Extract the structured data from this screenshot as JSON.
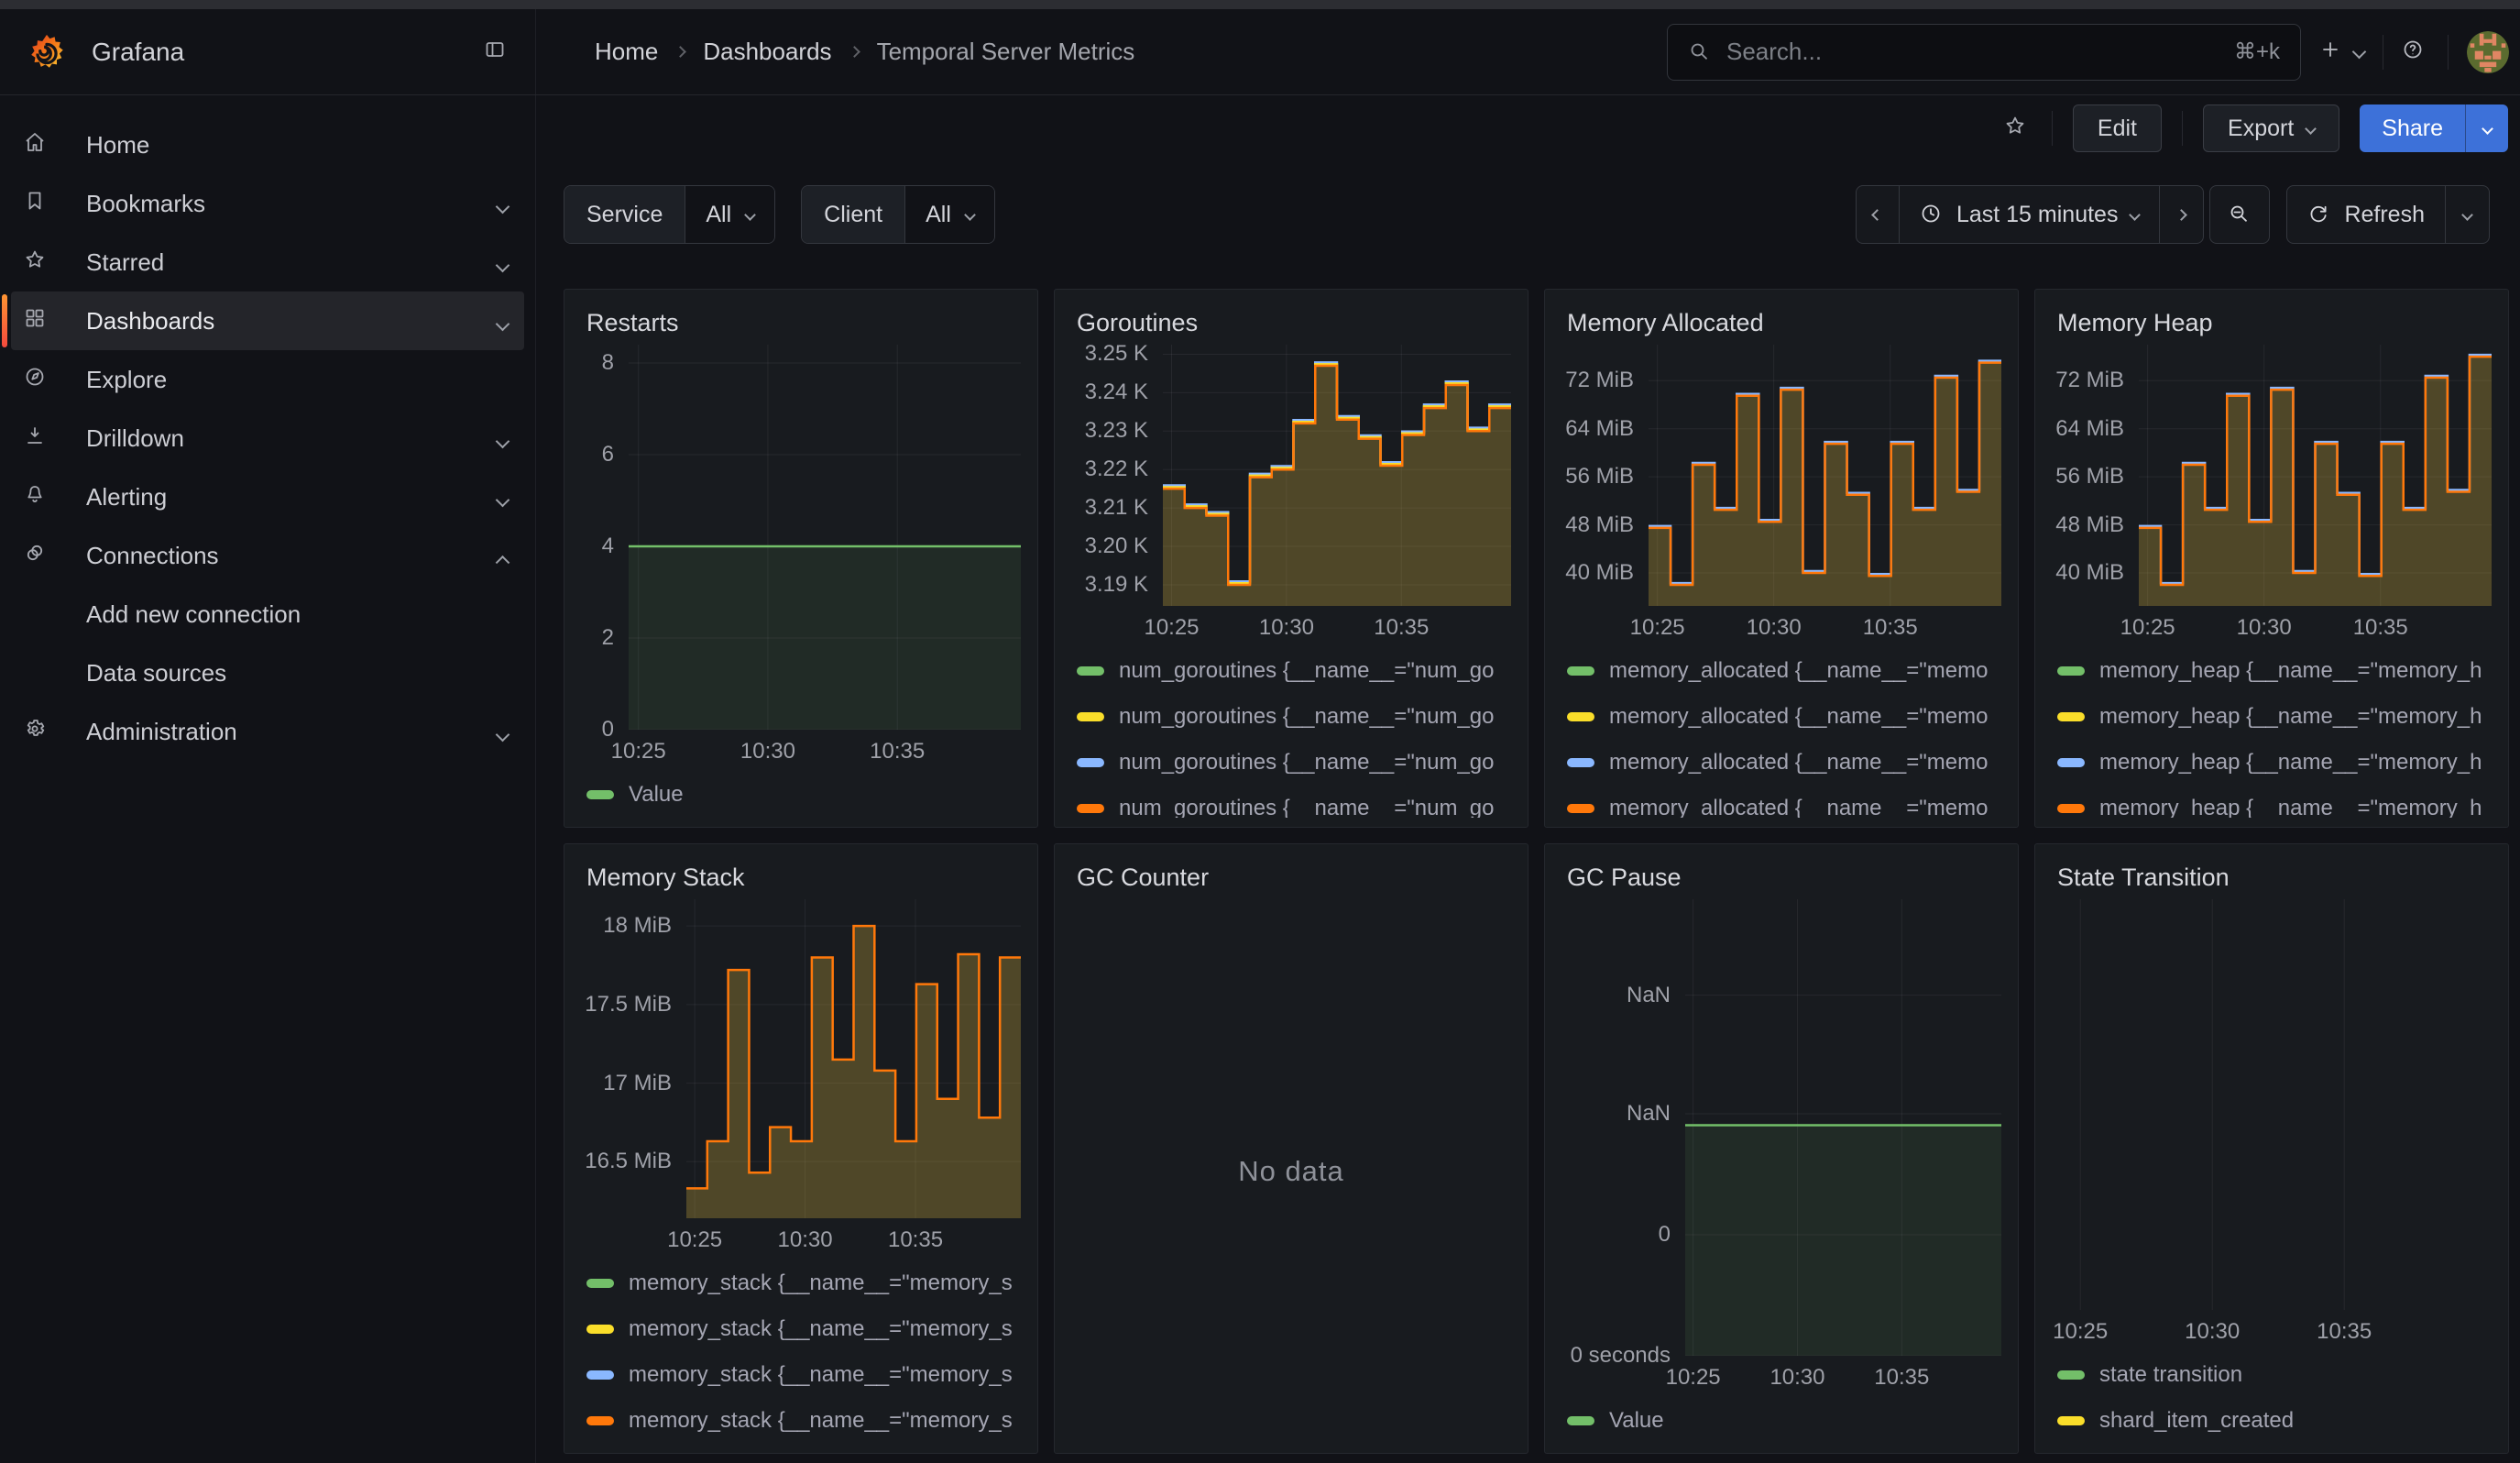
{
  "chrome": {
    "brand": "Grafana",
    "breadcrumb": [
      "Home",
      "Dashboards",
      "Temporal Server Metrics"
    ],
    "search": {
      "placeholder": "Search...",
      "shortcut": "⌘+k"
    },
    "actions": {
      "edit": "Edit",
      "export": "Export",
      "share": "Share"
    }
  },
  "sidebar": {
    "items": [
      {
        "icon": "home",
        "label": "Home"
      },
      {
        "icon": "bookmark",
        "label": "Bookmarks",
        "chevron": "down"
      },
      {
        "icon": "star",
        "label": "Starred",
        "chevron": "down"
      },
      {
        "icon": "grid",
        "label": "Dashboards",
        "chevron": "down",
        "active": true
      },
      {
        "icon": "compass",
        "label": "Explore"
      },
      {
        "icon": "drilldown",
        "label": "Drilldown",
        "chevron": "down"
      },
      {
        "icon": "bell",
        "label": "Alerting",
        "chevron": "down"
      },
      {
        "icon": "plug",
        "label": "Connections",
        "chevron": "up"
      },
      {
        "label": "Add new connection",
        "indent": true
      },
      {
        "label": "Data sources",
        "indent": true
      },
      {
        "icon": "gear",
        "label": "Administration",
        "chevron": "down"
      }
    ]
  },
  "filters": [
    {
      "label": "Service",
      "value": "All"
    },
    {
      "label": "Client",
      "value": "All"
    }
  ],
  "timebar": {
    "range": "Last 15 minutes",
    "refresh": "Refresh"
  },
  "colors": {
    "green": "#73BF69",
    "yellow": "#FADE2A",
    "blue": "#8AB8FF",
    "orange": "#FF780A",
    "share_blue": "#3D71D9",
    "accent_orange": "#FF8833"
  },
  "panels": [
    {
      "title": "Restarts",
      "type": "timeseries",
      "gutter": 52,
      "ylim": [
        0,
        8.4
      ],
      "y_ticks": [
        {
          "v": 8,
          "label": "8"
        },
        {
          "v": 6,
          "label": "6"
        },
        {
          "v": 4,
          "label": "4"
        },
        {
          "v": 2,
          "label": "2"
        },
        {
          "v": 0,
          "label": "0"
        }
      ],
      "x_ticks": [
        {
          "f": 0.025,
          "label": "10:25"
        },
        {
          "f": 0.355,
          "label": "10:30"
        },
        {
          "f": 0.685,
          "label": "10:35"
        }
      ],
      "values": [
        4,
        4
      ],
      "line_color": "#73BF69",
      "fill_color": "rgba(115,191,105,0.10)",
      "legend": [
        {
          "color": "#73BF69",
          "label": "Value"
        }
      ]
    },
    {
      "title": "Goroutines",
      "type": "timeseries",
      "gutter": 100,
      "ylim": [
        3.1845,
        3.2525
      ],
      "y_ticks": [
        {
          "v": 3.25,
          "label": "3.25 K"
        },
        {
          "v": 3.24,
          "label": "3.24 K"
        },
        {
          "v": 3.23,
          "label": "3.23 K"
        },
        {
          "v": 3.22,
          "label": "3.22 K"
        },
        {
          "v": 3.21,
          "label": "3.21 K"
        },
        {
          "v": 3.2,
          "label": "3.20 K"
        },
        {
          "v": 3.19,
          "label": "3.19 K"
        }
      ],
      "x_ticks": [
        {
          "f": 0.025,
          "label": "10:25"
        },
        {
          "f": 0.355,
          "label": "10:30"
        },
        {
          "f": 0.685,
          "label": "10:35"
        }
      ],
      "values": [
        3.215,
        3.21,
        3.208,
        3.19,
        3.218,
        3.22,
        3.232,
        3.247,
        3.233,
        3.228,
        3.221,
        3.229,
        3.236,
        3.242,
        3.23,
        3.236
      ],
      "line_color": "#FF780A",
      "fill_color": "rgba(208,176,64,0.30)",
      "edges": [
        {
          "color": "#8AB8FF",
          "dy": -13
        },
        {
          "color": "#FADE2A",
          "dy": -6
        }
      ],
      "legend": [
        {
          "color": "#73BF69",
          "label": "num_goroutines {__name__=\"num_go"
        },
        {
          "color": "#FADE2A",
          "label": "num_goroutines {__name__=\"num_go"
        },
        {
          "color": "#8AB8FF",
          "label": "num_goroutines {__name__=\"num_go"
        },
        {
          "color": "#FF780A",
          "label": "num_goroutines {__name__=\"num_go"
        }
      ]
    },
    {
      "title": "Memory Allocated",
      "type": "timeseries",
      "gutter": 95,
      "ylim": [
        34.5,
        78
      ],
      "y_ticks": [
        {
          "v": 72,
          "label": "72 MiB"
        },
        {
          "v": 64,
          "label": "64 MiB"
        },
        {
          "v": 56,
          "label": "56 MiB"
        },
        {
          "v": 48,
          "label": "48 MiB"
        },
        {
          "v": 40,
          "label": "40 MiB"
        }
      ],
      "x_ticks": [
        {
          "f": 0.025,
          "label": "10:25"
        },
        {
          "f": 0.355,
          "label": "10:30"
        },
        {
          "f": 0.685,
          "label": "10:35"
        }
      ],
      "values": [
        47.5,
        38,
        58,
        50.5,
        69.5,
        48.5,
        70.5,
        40,
        61.5,
        53,
        39.5,
        61.5,
        50.5,
        72.5,
        53.5,
        75
      ],
      "line_color": "#FF780A",
      "fill_color": "rgba(208,176,64,0.30)",
      "edges": [
        {
          "color": "#8AB8FF",
          "dy": -7
        }
      ],
      "legend": [
        {
          "color": "#73BF69",
          "label": "memory_allocated {__name__=\"memo"
        },
        {
          "color": "#FADE2A",
          "label": "memory_allocated {__name__=\"memo"
        },
        {
          "color": "#8AB8FF",
          "label": "memory_allocated {__name__=\"memo"
        },
        {
          "color": "#FF780A",
          "label": "memory_allocated {__name__=\"memo"
        }
      ]
    },
    {
      "title": "Memory Heap",
      "type": "timeseries",
      "gutter": 95,
      "ylim": [
        34.5,
        78
      ],
      "y_ticks": [
        {
          "v": 72,
          "label": "72 MiB"
        },
        {
          "v": 64,
          "label": "64 MiB"
        },
        {
          "v": 56,
          "label": "56 MiB"
        },
        {
          "v": 48,
          "label": "48 MiB"
        },
        {
          "v": 40,
          "label": "40 MiB"
        }
      ],
      "x_ticks": [
        {
          "f": 0.025,
          "label": "10:25"
        },
        {
          "f": 0.355,
          "label": "10:30"
        },
        {
          "f": 0.685,
          "label": "10:35"
        }
      ],
      "values": [
        47.5,
        38,
        58,
        50.5,
        69.5,
        48.5,
        70.5,
        40,
        61.5,
        53,
        39.5,
        61.5,
        50.5,
        72.5,
        53.5,
        76
      ],
      "line_color": "#FF780A",
      "fill_color": "rgba(208,176,64,0.30)",
      "edges": [
        {
          "color": "#8AB8FF",
          "dy": -7
        }
      ],
      "legend": [
        {
          "color": "#73BF69",
          "label": "memory_heap {__name__=\"memory_h"
        },
        {
          "color": "#FADE2A",
          "label": "memory_heap {__name__=\"memory_h"
        },
        {
          "color": "#8AB8FF",
          "label": "memory_heap {__name__=\"memory_h"
        },
        {
          "color": "#FF780A",
          "label": "memory_heap {__name__=\"memory_h"
        }
      ]
    },
    {
      "title": "Memory Stack",
      "type": "timeseries",
      "gutter": 115,
      "ylim": [
        16.14,
        18.17
      ],
      "y_ticks": [
        {
          "v": 18,
          "label": "18 MiB"
        },
        {
          "v": 17.5,
          "label": "17.5 MiB"
        },
        {
          "v": 17,
          "label": "17 MiB"
        },
        {
          "v": 16.5,
          "label": "16.5 MiB"
        }
      ],
      "x_ticks": [
        {
          "f": 0.025,
          "label": "10:25"
        },
        {
          "f": 0.355,
          "label": "10:30"
        },
        {
          "f": 0.685,
          "label": "10:35"
        }
      ],
      "values": [
        16.33,
        16.63,
        17.72,
        16.43,
        16.72,
        16.63,
        17.8,
        17.15,
        18.0,
        17.08,
        16.63,
        17.63,
        16.9,
        17.82,
        16.78,
        17.8
      ],
      "line_color": "#FF780A",
      "fill_color": "rgba(208,176,64,0.30)",
      "edges": [],
      "legend": [
        {
          "color": "#73BF69",
          "label": "memory_stack {__name__=\"memory_s"
        },
        {
          "color": "#FADE2A",
          "label": "memory_stack {__name__=\"memory_s"
        },
        {
          "color": "#8AB8FF",
          "label": "memory_stack {__name__=\"memory_s"
        },
        {
          "color": "#FF780A",
          "label": "memory_stack {__name__=\"memory_s"
        }
      ]
    },
    {
      "title": "GC Counter",
      "type": "nodata",
      "no_data": "No data"
    },
    {
      "title": "GC Pause",
      "type": "timeseries",
      "gutter": 135,
      "ylim": [
        0,
        1
      ],
      "y_ticks": [
        {
          "v": 0.79,
          "label": "NaN"
        },
        {
          "v": 0.53,
          "label": "NaN"
        },
        {
          "v": 0.265,
          "label": "0"
        },
        {
          "v": 0,
          "label": "0 seconds"
        }
      ],
      "x_ticks": [
        {
          "f": 0.025,
          "label": "10:25"
        },
        {
          "f": 0.355,
          "label": "10:30"
        },
        {
          "f": 0.685,
          "label": "10:35"
        }
      ],
      "values": [
        0.505,
        0.505
      ],
      "line_color": "#73BF69",
      "fill_color": "rgba(115,191,105,0.10)",
      "legend": [
        {
          "color": "#73BF69",
          "label": "Value"
        }
      ]
    },
    {
      "title": "State Transition",
      "type": "timeseries",
      "gutter": 0,
      "ylim": [
        0,
        1
      ],
      "y_ticks": [],
      "x_ticks": [
        {
          "f": 0.065,
          "label": "10:25"
        },
        {
          "f": 0.365,
          "label": "10:30"
        },
        {
          "f": 0.665,
          "label": "10:35"
        }
      ],
      "values": [],
      "legend": [
        {
          "color": "#73BF69",
          "label": "state transition"
        },
        {
          "color": "#FADE2A",
          "label": "shard_item_created"
        }
      ]
    }
  ]
}
